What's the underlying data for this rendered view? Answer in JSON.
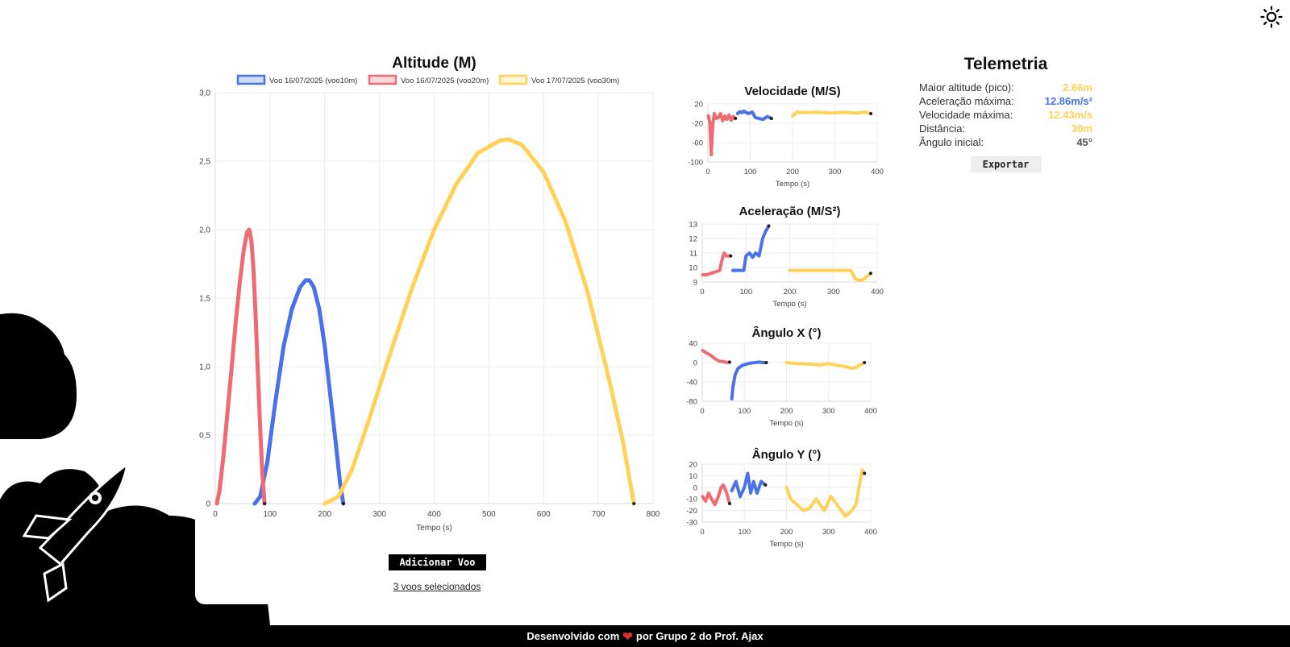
{
  "main_chart": {
    "title": "Altitude (M)",
    "xlabel": "Tempo (s)",
    "legend": [
      {
        "label": "Voo 16/07/2025 (voo10m)",
        "color": "#4a72e8"
      },
      {
        "label": "Voo 16/07/2025 (voo20m)",
        "color": "#ef6b73"
      },
      {
        "label": "Voo 17/07/2025 (voo30m)",
        "color": "#ffd257"
      }
    ]
  },
  "actions": {
    "add_flight_label": "Adicionar Voo",
    "selected_label": "3 voos selecionados"
  },
  "telemetry": {
    "title": "Telemetria",
    "rows": [
      {
        "label": "Maior altitude (pico):",
        "value": "2.66m",
        "color": "#ffd257"
      },
      {
        "label": "Aceleração máxima:",
        "value": "12.86m/s²",
        "color": "#4a72e8"
      },
      {
        "label": "Velocidade máxima:",
        "value": "12.43m/s",
        "color": "#ffd257"
      },
      {
        "label": "Distância:",
        "value": "30m",
        "color": "#ffd257"
      },
      {
        "label": "Ângulo inicial:",
        "value": "45°",
        "color": "#555555"
      }
    ],
    "export_label": "Exportar"
  },
  "footer": {
    "prefix": "Desenvolvido com",
    "suffix": "por Grupo 2 do Prof. Ajax"
  },
  "chart_data": [
    {
      "id": "altitude",
      "type": "line",
      "title": "Altitude (M)",
      "xlabel": "Tempo (s)",
      "ylabel": "",
      "xlim": [
        0,
        800
      ],
      "ylim": [
        0,
        3
      ],
      "xticks": [
        0,
        100,
        200,
        300,
        400,
        500,
        600,
        700,
        800
      ],
      "yticks": [
        0,
        0.5,
        1.0,
        1.5,
        2.0,
        2.5,
        3.0
      ],
      "ytick_labels": [
        "0",
        "0,5",
        "1,0",
        "1,5",
        "2,0",
        "2,5",
        "3,0"
      ],
      "grid": true,
      "legend_position": "top",
      "series": [
        {
          "name": "Voo 16/07/2025 (voo10m)",
          "color": "#4a72e8",
          "x": [
            72,
            82,
            95,
            110,
            125,
            140,
            155,
            165,
            172,
            180,
            190,
            200,
            210,
            220,
            228,
            234
          ],
          "y": [
            0,
            0.05,
            0.3,
            0.75,
            1.15,
            1.42,
            1.58,
            1.63,
            1.63,
            1.58,
            1.42,
            1.15,
            0.8,
            0.45,
            0.15,
            0
          ]
        },
        {
          "name": "Voo 16/07/2025 (voo20m)",
          "color": "#ef6b73",
          "x": [
            3,
            8,
            15,
            22,
            30,
            38,
            45,
            52,
            58,
            62,
            66,
            70,
            74,
            78,
            82,
            86,
            90
          ],
          "y": [
            0,
            0.1,
            0.35,
            0.65,
            1.0,
            1.35,
            1.62,
            1.85,
            1.98,
            2.0,
            1.92,
            1.7,
            1.35,
            0.95,
            0.55,
            0.22,
            0
          ]
        },
        {
          "name": "Voo 17/07/2025 (voo30m)",
          "color": "#ffd257",
          "x": [
            200,
            225,
            250,
            280,
            320,
            360,
            400,
            440,
            480,
            520,
            535,
            560,
            600,
            640,
            680,
            720,
            745,
            765
          ],
          "y": [
            0,
            0.05,
            0.25,
            0.6,
            1.1,
            1.58,
            2.0,
            2.33,
            2.56,
            2.65,
            2.66,
            2.62,
            2.42,
            2.06,
            1.55,
            0.9,
            0.45,
            0
          ]
        }
      ]
    },
    {
      "id": "velocidade",
      "type": "line",
      "title": "Velocidade (M/S)",
      "xlabel": "Tempo (s)",
      "ylabel": "",
      "xlim": [
        0,
        400
      ],
      "ylim": [
        -100,
        20
      ],
      "xticks": [
        0,
        100,
        200,
        300,
        400
      ],
      "yticks": [
        20,
        -20,
        -60,
        -100
      ],
      "grid": true,
      "series": [
        {
          "name": "voo20m",
          "color": "#ef6b73",
          "x": [
            1,
            5,
            8,
            10,
            12,
            15,
            20,
            25,
            30,
            35,
            40,
            45,
            50,
            55,
            60,
            65
          ],
          "y": [
            -5,
            -20,
            -85,
            -45,
            -20,
            0,
            -10,
            -8,
            0,
            -15,
            -5,
            -12,
            -3,
            -14,
            -6,
            -10
          ]
        },
        {
          "name": "voo10m",
          "color": "#4a72e8",
          "x": [
            70,
            75,
            80,
            85,
            95,
            105,
            112,
            120,
            130,
            140,
            150
          ],
          "y": [
            0,
            4,
            2,
            5,
            0,
            3,
            -8,
            -10,
            -12,
            -6,
            -10
          ]
        },
        {
          "name": "voo30m",
          "color": "#ffd257",
          "x": [
            200,
            210,
            230,
            260,
            290,
            320,
            350,
            370,
            385
          ],
          "y": [
            -5,
            3,
            2,
            3,
            1,
            3,
            1,
            3,
            0
          ]
        }
      ]
    },
    {
      "id": "aceleracao",
      "type": "line",
      "title": "Aceleração (M/S²)",
      "xlabel": "Tempo (s)",
      "ylabel": "",
      "xlim": [
        0,
        400
      ],
      "ylim": [
        9,
        13
      ],
      "xticks": [
        0,
        100,
        200,
        300,
        400
      ],
      "yticks": [
        9,
        10,
        11,
        12,
        13
      ],
      "grid": true,
      "series": [
        {
          "name": "voo20m",
          "color": "#ef6b73",
          "x": [
            1,
            10,
            20,
            30,
            40,
            45,
            50,
            55,
            65
          ],
          "y": [
            9.5,
            9.5,
            9.6,
            9.7,
            9.8,
            10.5,
            11.0,
            10.8,
            10.8
          ]
        },
        {
          "name": "voo10m",
          "color": "#4a72e8",
          "x": [
            70,
            80,
            95,
            100,
            108,
            115,
            122,
            130,
            138,
            145,
            152
          ],
          "y": [
            9.8,
            9.8,
            9.8,
            10.8,
            11.0,
            10.7,
            11.0,
            10.8,
            12.0,
            12.5,
            12.86
          ]
        },
        {
          "name": "voo30m",
          "color": "#ffd257",
          "x": [
            200,
            230,
            260,
            290,
            320,
            340,
            350,
            360,
            370,
            385
          ],
          "y": [
            9.8,
            9.8,
            9.8,
            9.8,
            9.8,
            9.8,
            9.2,
            9.1,
            9.2,
            9.6
          ]
        }
      ]
    },
    {
      "id": "angulo_x",
      "type": "line",
      "title": "Ângulo X (°)",
      "xlabel": "Tempo (s)",
      "ylabel": "",
      "xlim": [
        0,
        400
      ],
      "ylim": [
        -80,
        40
      ],
      "xticks": [
        0,
        100,
        200,
        300,
        400
      ],
      "yticks": [
        40,
        0,
        -40,
        -80
      ],
      "grid": true,
      "series": [
        {
          "name": "voo20m",
          "color": "#ef6b73",
          "x": [
            1,
            10,
            20,
            30,
            40,
            50,
            60,
            65
          ],
          "y": [
            25,
            20,
            15,
            8,
            3,
            2,
            0,
            1
          ]
        },
        {
          "name": "voo10m",
          "color": "#4a72e8",
          "x": [
            70,
            73,
            78,
            85,
            95,
            105,
            115,
            125,
            135,
            145,
            152
          ],
          "y": [
            -75,
            -50,
            -25,
            -12,
            -6,
            -3,
            -1,
            0,
            1,
            0,
            0
          ]
        },
        {
          "name": "voo30m",
          "color": "#ffd257",
          "x": [
            200,
            220,
            250,
            280,
            300,
            320,
            340,
            355,
            365,
            375,
            385
          ],
          "y": [
            0,
            -2,
            -3,
            -5,
            -2,
            -6,
            -8,
            -12,
            -10,
            -5,
            0
          ]
        }
      ]
    },
    {
      "id": "angulo_y",
      "type": "line",
      "title": "Ângulo Y (°)",
      "xlabel": "Tempo (s)",
      "ylabel": "",
      "xlim": [
        0,
        400
      ],
      "ylim": [
        -30,
        20
      ],
      "xticks": [
        0,
        100,
        200,
        300,
        400
      ],
      "yticks": [
        20,
        10,
        0,
        -10,
        -20,
        -30
      ],
      "grid": true,
      "series": [
        {
          "name": "voo20m",
          "color": "#ef6b73",
          "x": [
            1,
            8,
            15,
            22,
            30,
            38,
            45,
            50,
            58,
            65
          ],
          "y": [
            -8,
            -12,
            -5,
            -10,
            -15,
            -8,
            0,
            2,
            -5,
            -14
          ]
        },
        {
          "name": "voo10m",
          "color": "#4a72e8",
          "x": [
            70,
            80,
            90,
            100,
            108,
            115,
            122,
            130,
            140,
            150
          ],
          "y": [
            -3,
            5,
            -8,
            0,
            12,
            -5,
            5,
            -5,
            5,
            2
          ]
        },
        {
          "name": "voo30m",
          "color": "#ffd257",
          "x": [
            200,
            210,
            225,
            240,
            255,
            270,
            290,
            305,
            320,
            340,
            355,
            365,
            372,
            380,
            385
          ],
          "y": [
            0,
            -10,
            -15,
            -20,
            -18,
            -10,
            -20,
            -8,
            -15,
            -25,
            -20,
            -15,
            0,
            15,
            12
          ]
        }
      ]
    }
  ]
}
